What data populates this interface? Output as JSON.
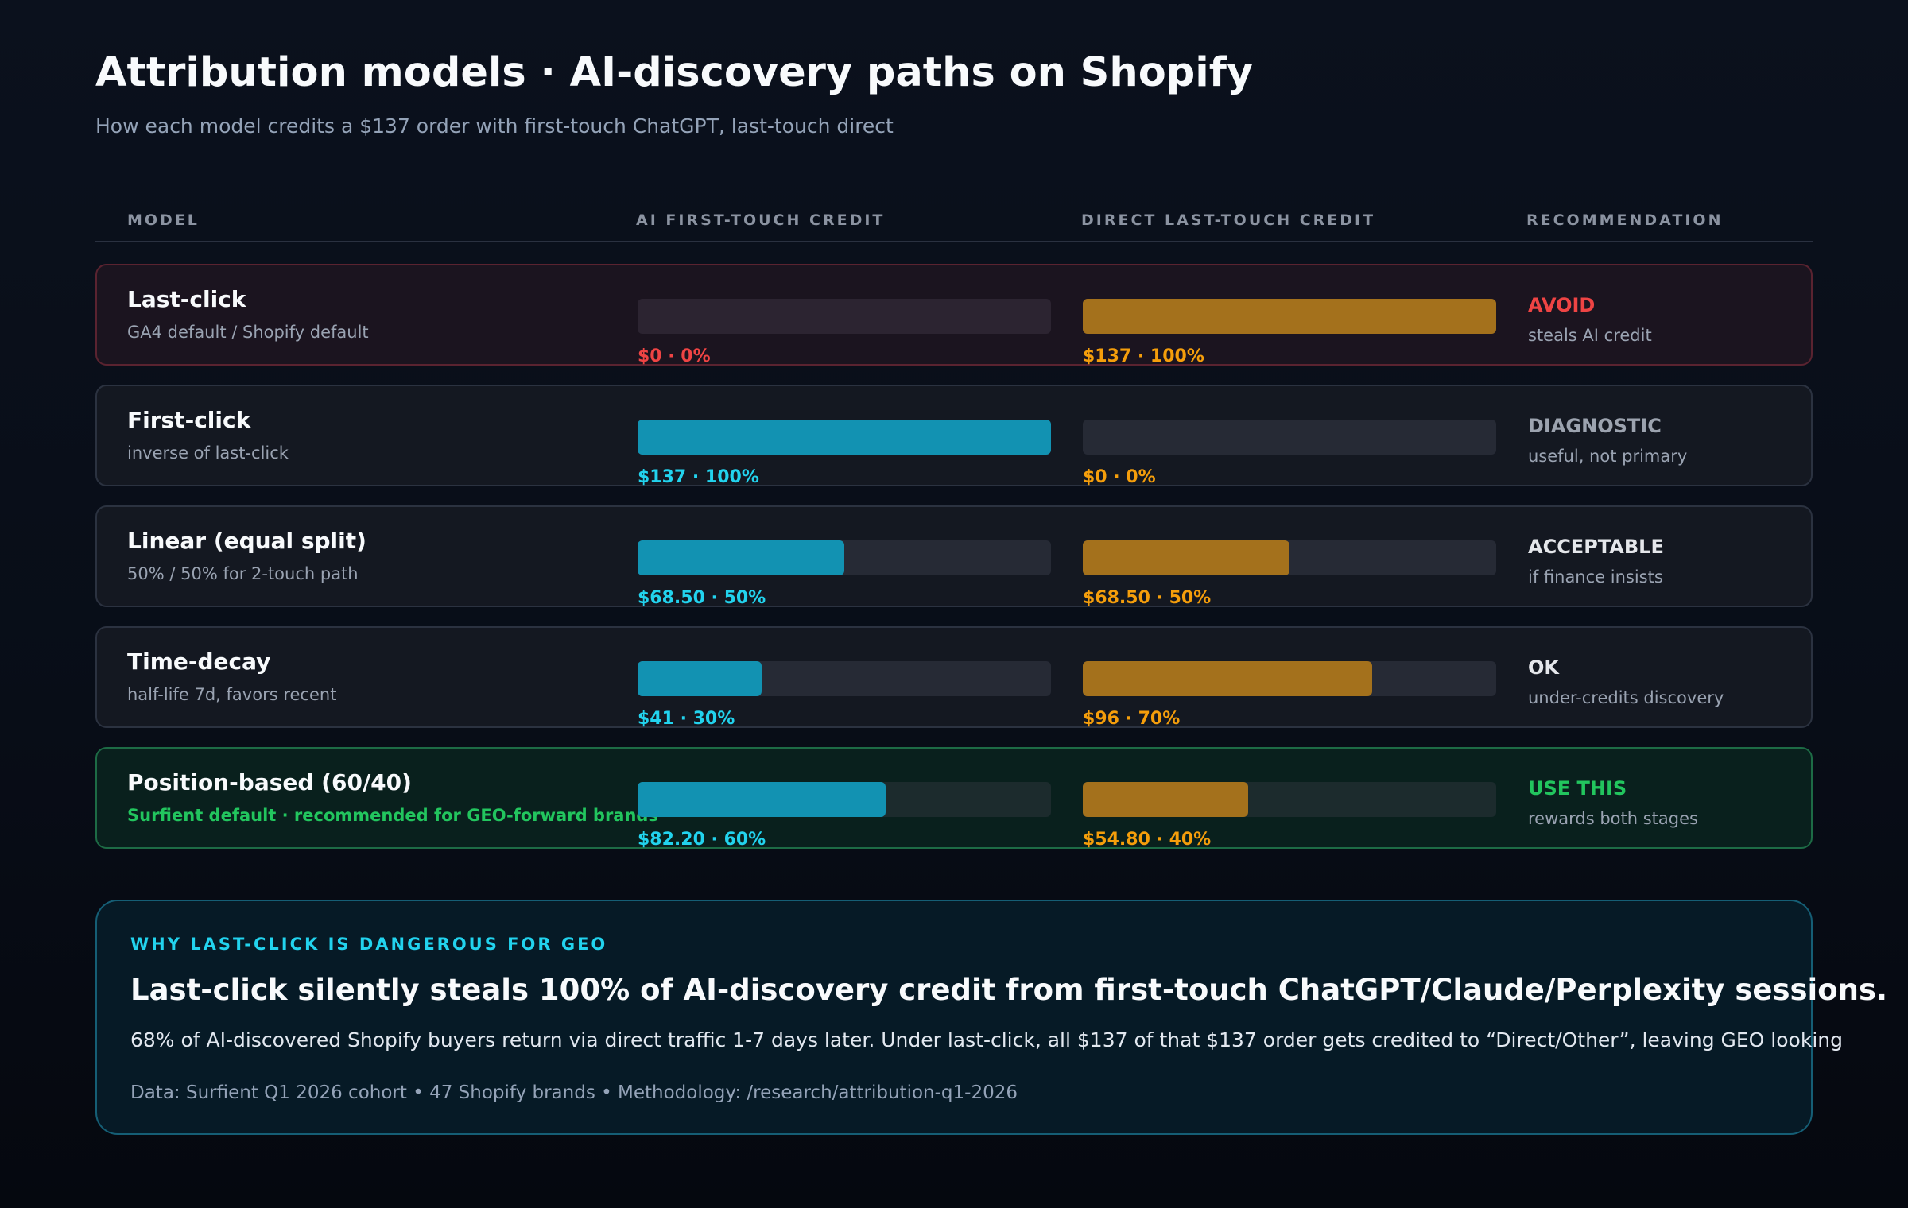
{
  "title": "Attribution models · AI-discovery paths on Shopify",
  "subtitle": "How each model credits a $137 order with first-touch ChatGPT, last-touch direct",
  "columns": {
    "model": "MODEL",
    "ai": "AI FIRST-TOUCH CREDIT",
    "direct": "DIRECT LAST-TOUCH CREDIT",
    "recommendation": "RECOMMENDATION"
  },
  "colors": {
    "ai_bar": "#1292b2",
    "direct_bar": "#a4711c",
    "avoid": "#ef4444",
    "diagnostic": "#9ca3af",
    "neutral": "#e5e7eb",
    "use": "#22c55e"
  },
  "chart_data": {
    "type": "bar",
    "orientation": "horizontal",
    "order_value": 137,
    "categories": [
      "Last-click",
      "First-click",
      "Linear (equal split)",
      "Time-decay",
      "Position-based (60/40)"
    ],
    "series": [
      {
        "name": "AI FIRST-TOUCH CREDIT",
        "values": [
          0,
          100,
          50,
          30,
          60
        ],
        "amounts": [
          0,
          137,
          68.5,
          41,
          82.2
        ]
      },
      {
        "name": "DIRECT LAST-TOUCH CREDIT",
        "values": [
          100,
          0,
          50,
          70,
          40
        ],
        "amounts": [
          137,
          0,
          68.5,
          96,
          54.8
        ]
      }
    ],
    "xlim": [
      0,
      100
    ]
  },
  "models": [
    {
      "name": "Last-click",
      "desc": "GA4 default / Shopify default",
      "ai_pct": 0,
      "ai_label": "$0 · 0%",
      "direct_pct": 100,
      "direct_label": "$137 · 100%",
      "rec": "AVOID",
      "rec_desc": "steals AI credit",
      "style": "avoid"
    },
    {
      "name": "First-click",
      "desc": "inverse of last-click",
      "ai_pct": 100,
      "ai_label": "$137 · 100%",
      "direct_pct": 0,
      "direct_label": "$0 · 0%",
      "rec": "DIAGNOSTIC",
      "rec_desc": "useful, not primary",
      "style": "diagnostic"
    },
    {
      "name": "Linear (equal split)",
      "desc": "50% / 50% for 2-touch path",
      "ai_pct": 50,
      "ai_label": "$68.50 · 50%",
      "direct_pct": 50,
      "direct_label": "$68.50 · 50%",
      "rec": "ACCEPTABLE",
      "rec_desc": "if finance insists",
      "style": "neutral"
    },
    {
      "name": "Time-decay",
      "desc": "half-life 7d, favors recent",
      "ai_pct": 30,
      "ai_label": "$41 · 30%",
      "direct_pct": 70,
      "direct_label": "$96 · 70%",
      "rec": "OK",
      "rec_desc": "under-credits discovery",
      "style": "neutral"
    },
    {
      "name": "Position-based (60/40)",
      "desc": "Surfient default · recommended for GEO-forward brands",
      "ai_pct": 60,
      "ai_label": "$82.20 · 60%",
      "direct_pct": 40,
      "direct_label": "$54.80 · 40%",
      "rec": "USE THIS",
      "rec_desc": "rewards both stages",
      "style": "use"
    }
  ],
  "callout": {
    "eyebrow": "WHY LAST-CLICK IS DANGEROUS FOR GEO",
    "headline": "Last-click silently steals 100% of AI-discovery credit from first-touch ChatGPT/Claude/Perplexity sessions.",
    "body": "68% of AI-discovered Shopify buyers return via direct traffic 1-7 days later. Under last-click, all $137 of that $137 order gets credited to “Direct/Other”, leaving GEO looking",
    "footer": "Data: Surfient Q1 2026 cohort • 47 Shopify brands • Methodology: /research/attribution-q1-2026"
  }
}
